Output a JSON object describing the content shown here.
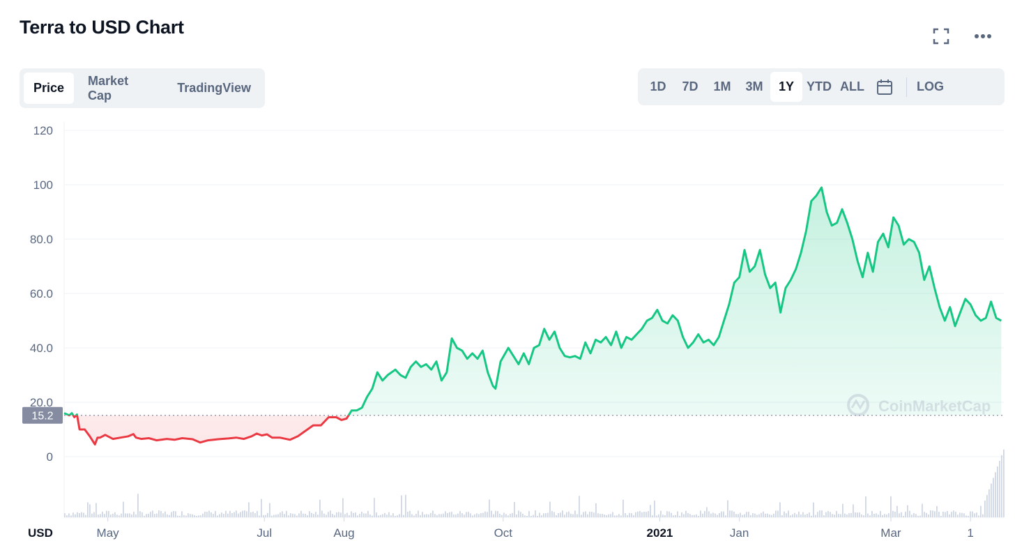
{
  "header": {
    "title": "Terra to USD Chart"
  },
  "icons": {
    "fullscreen": "fullscreen-icon",
    "more": "more-horizontal-icon",
    "calendar": "calendar-icon"
  },
  "tabs": [
    {
      "label": "Price",
      "active": true
    },
    {
      "label": "Market Cap",
      "active": false
    },
    {
      "label": "TradingView",
      "active": false
    }
  ],
  "ranges": [
    {
      "label": "1D",
      "active": false
    },
    {
      "label": "7D",
      "active": false
    },
    {
      "label": "1M",
      "active": false
    },
    {
      "label": "3M",
      "active": false
    },
    {
      "label": "1Y",
      "active": true
    },
    {
      "label": "YTD",
      "active": false
    },
    {
      "label": "ALL",
      "active": false
    }
  ],
  "log_label": "LOG",
  "watermark": "CoinMarketCap",
  "colors": {
    "up": "#16c784",
    "down": "#ea3943",
    "grid": "#eff2f5",
    "text": "#58667e",
    "badge": "#858ca2"
  },
  "chart_data": {
    "type": "line",
    "currency_label": "USD",
    "baseline_value": 15.2,
    "baseline_label": "15.2",
    "y_ticks": [
      "0",
      "20.0",
      "40.0",
      "60.0",
      "80.0",
      "100",
      "120"
    ],
    "y_tick_values": [
      0,
      20,
      40,
      60,
      80,
      100,
      120
    ],
    "ylim": [
      -15,
      120
    ],
    "x_labels": [
      {
        "label": "May",
        "day": 17,
        "bold": false
      },
      {
        "label": "Jul",
        "day": 78,
        "bold": false
      },
      {
        "label": "Aug",
        "day": 109,
        "bold": false
      },
      {
        "label": "Oct",
        "day": 171,
        "bold": false
      },
      {
        "label": "2021",
        "day": 232,
        "bold": true
      },
      {
        "label": "Jan",
        "day": 263,
        "bold": false
      },
      {
        "label": "Mar",
        "day": 322,
        "bold": false
      },
      {
        "label": "1",
        "day": 353,
        "bold": false
      }
    ],
    "xlim": [
      0,
      366
    ],
    "series": [
      {
        "points": [
          [
            0,
            16
          ],
          [
            2,
            15.2
          ],
          [
            3,
            16
          ],
          [
            4,
            14.5
          ],
          [
            5,
            15.5
          ],
          [
            6,
            10
          ],
          [
            8,
            10
          ],
          [
            10,
            7.5
          ],
          [
            12,
            4.5
          ],
          [
            13,
            7
          ],
          [
            14,
            7
          ],
          [
            16,
            8
          ],
          [
            19,
            6.5
          ],
          [
            22,
            7
          ],
          [
            25,
            7.5
          ],
          [
            27,
            8.3
          ],
          [
            28,
            7
          ],
          [
            30,
            6.5
          ],
          [
            33,
            6.8
          ],
          [
            36,
            6
          ],
          [
            40,
            6.5
          ],
          [
            43,
            6.2
          ],
          [
            46,
            6.8
          ],
          [
            50,
            6.4
          ],
          [
            53,
            5.2
          ],
          [
            56,
            6
          ],
          [
            60,
            6.4
          ],
          [
            64,
            6.7
          ],
          [
            67,
            7
          ],
          [
            70,
            6.5
          ],
          [
            73,
            7.5
          ],
          [
            75,
            8.5
          ],
          [
            77,
            7.8
          ],
          [
            79,
            8.2
          ],
          [
            81,
            7
          ],
          [
            84,
            7
          ],
          [
            88,
            6.2
          ],
          [
            91,
            7.5
          ],
          [
            94,
            9.5
          ],
          [
            97,
            11.5
          ],
          [
            100,
            11.5
          ],
          [
            103,
            14.5
          ],
          [
            106,
            14.5
          ],
          [
            108,
            13.5
          ],
          [
            110,
            14
          ],
          [
            112,
            17
          ],
          [
            114,
            17
          ],
          [
            116,
            18
          ],
          [
            118,
            22
          ],
          [
            120,
            25
          ],
          [
            122,
            31
          ],
          [
            124,
            28
          ],
          [
            126,
            30
          ],
          [
            129,
            32
          ],
          [
            131,
            30
          ],
          [
            133,
            29
          ],
          [
            135,
            33
          ],
          [
            137,
            35
          ],
          [
            139,
            33
          ],
          [
            141,
            34
          ],
          [
            143,
            32
          ],
          [
            145,
            35
          ],
          [
            147,
            28
          ],
          [
            149,
            31
          ],
          [
            151,
            43.5
          ],
          [
            153,
            40
          ],
          [
            155,
            39
          ],
          [
            157,
            36
          ],
          [
            159,
            38
          ],
          [
            161,
            36
          ],
          [
            163,
            39
          ],
          [
            165,
            31
          ],
          [
            167,
            26
          ],
          [
            168,
            25
          ],
          [
            170,
            35
          ],
          [
            173,
            40
          ],
          [
            175,
            37
          ],
          [
            177,
            34
          ],
          [
            179,
            38
          ],
          [
            181,
            34
          ],
          [
            183,
            40
          ],
          [
            185,
            41
          ],
          [
            187,
            47
          ],
          [
            189,
            43
          ],
          [
            191,
            46
          ],
          [
            193,
            40
          ],
          [
            195,
            37
          ],
          [
            197,
            36.5
          ],
          [
            199,
            37
          ],
          [
            201,
            36
          ],
          [
            203,
            42
          ],
          [
            205,
            38
          ],
          [
            207,
            43
          ],
          [
            209,
            42
          ],
          [
            211,
            44
          ],
          [
            213,
            41
          ],
          [
            215,
            46
          ],
          [
            217,
            40
          ],
          [
            219,
            44
          ],
          [
            221,
            43
          ],
          [
            223,
            45
          ],
          [
            225,
            47
          ],
          [
            227,
            50
          ],
          [
            229,
            51
          ],
          [
            231,
            54
          ],
          [
            233,
            50
          ],
          [
            235,
            49
          ],
          [
            237,
            52
          ],
          [
            239,
            50
          ],
          [
            241,
            44
          ],
          [
            243,
            40
          ],
          [
            245,
            42
          ],
          [
            247,
            45
          ],
          [
            249,
            42
          ],
          [
            251,
            43
          ],
          [
            253,
            41
          ],
          [
            255,
            44
          ],
          [
            257,
            50
          ],
          [
            259,
            56
          ],
          [
            261,
            64
          ],
          [
            263,
            66
          ],
          [
            265,
            76
          ],
          [
            267,
            68
          ],
          [
            269,
            70
          ],
          [
            271,
            76
          ],
          [
            273,
            67
          ],
          [
            275,
            62
          ],
          [
            277,
            64
          ],
          [
            279,
            53
          ],
          [
            281,
            62
          ],
          [
            283,
            65
          ],
          [
            285,
            69
          ],
          [
            287,
            75
          ],
          [
            289,
            83
          ],
          [
            291,
            94
          ],
          [
            293,
            96
          ],
          [
            295,
            99
          ],
          [
            297,
            90
          ],
          [
            299,
            85
          ],
          [
            301,
            86
          ],
          [
            303,
            91
          ],
          [
            305,
            86
          ],
          [
            307,
            80
          ],
          [
            309,
            72
          ],
          [
            311,
            66
          ],
          [
            313,
            75
          ],
          [
            315,
            68
          ],
          [
            317,
            79
          ],
          [
            319,
            82
          ],
          [
            321,
            77
          ],
          [
            323,
            88
          ],
          [
            325,
            85
          ],
          [
            327,
            78
          ],
          [
            329,
            80
          ],
          [
            331,
            79
          ],
          [
            333,
            75
          ],
          [
            335,
            65
          ],
          [
            337,
            70
          ],
          [
            339,
            62
          ],
          [
            341,
            55
          ],
          [
            343,
            50
          ],
          [
            345,
            55
          ],
          [
            347,
            48
          ],
          [
            349,
            53
          ],
          [
            351,
            58
          ],
          [
            353,
            56
          ],
          [
            355,
            52
          ],
          [
            357,
            50
          ],
          [
            359,
            51
          ],
          [
            361,
            57
          ],
          [
            363,
            51
          ],
          [
            365,
            50
          ]
        ]
      }
    ]
  }
}
